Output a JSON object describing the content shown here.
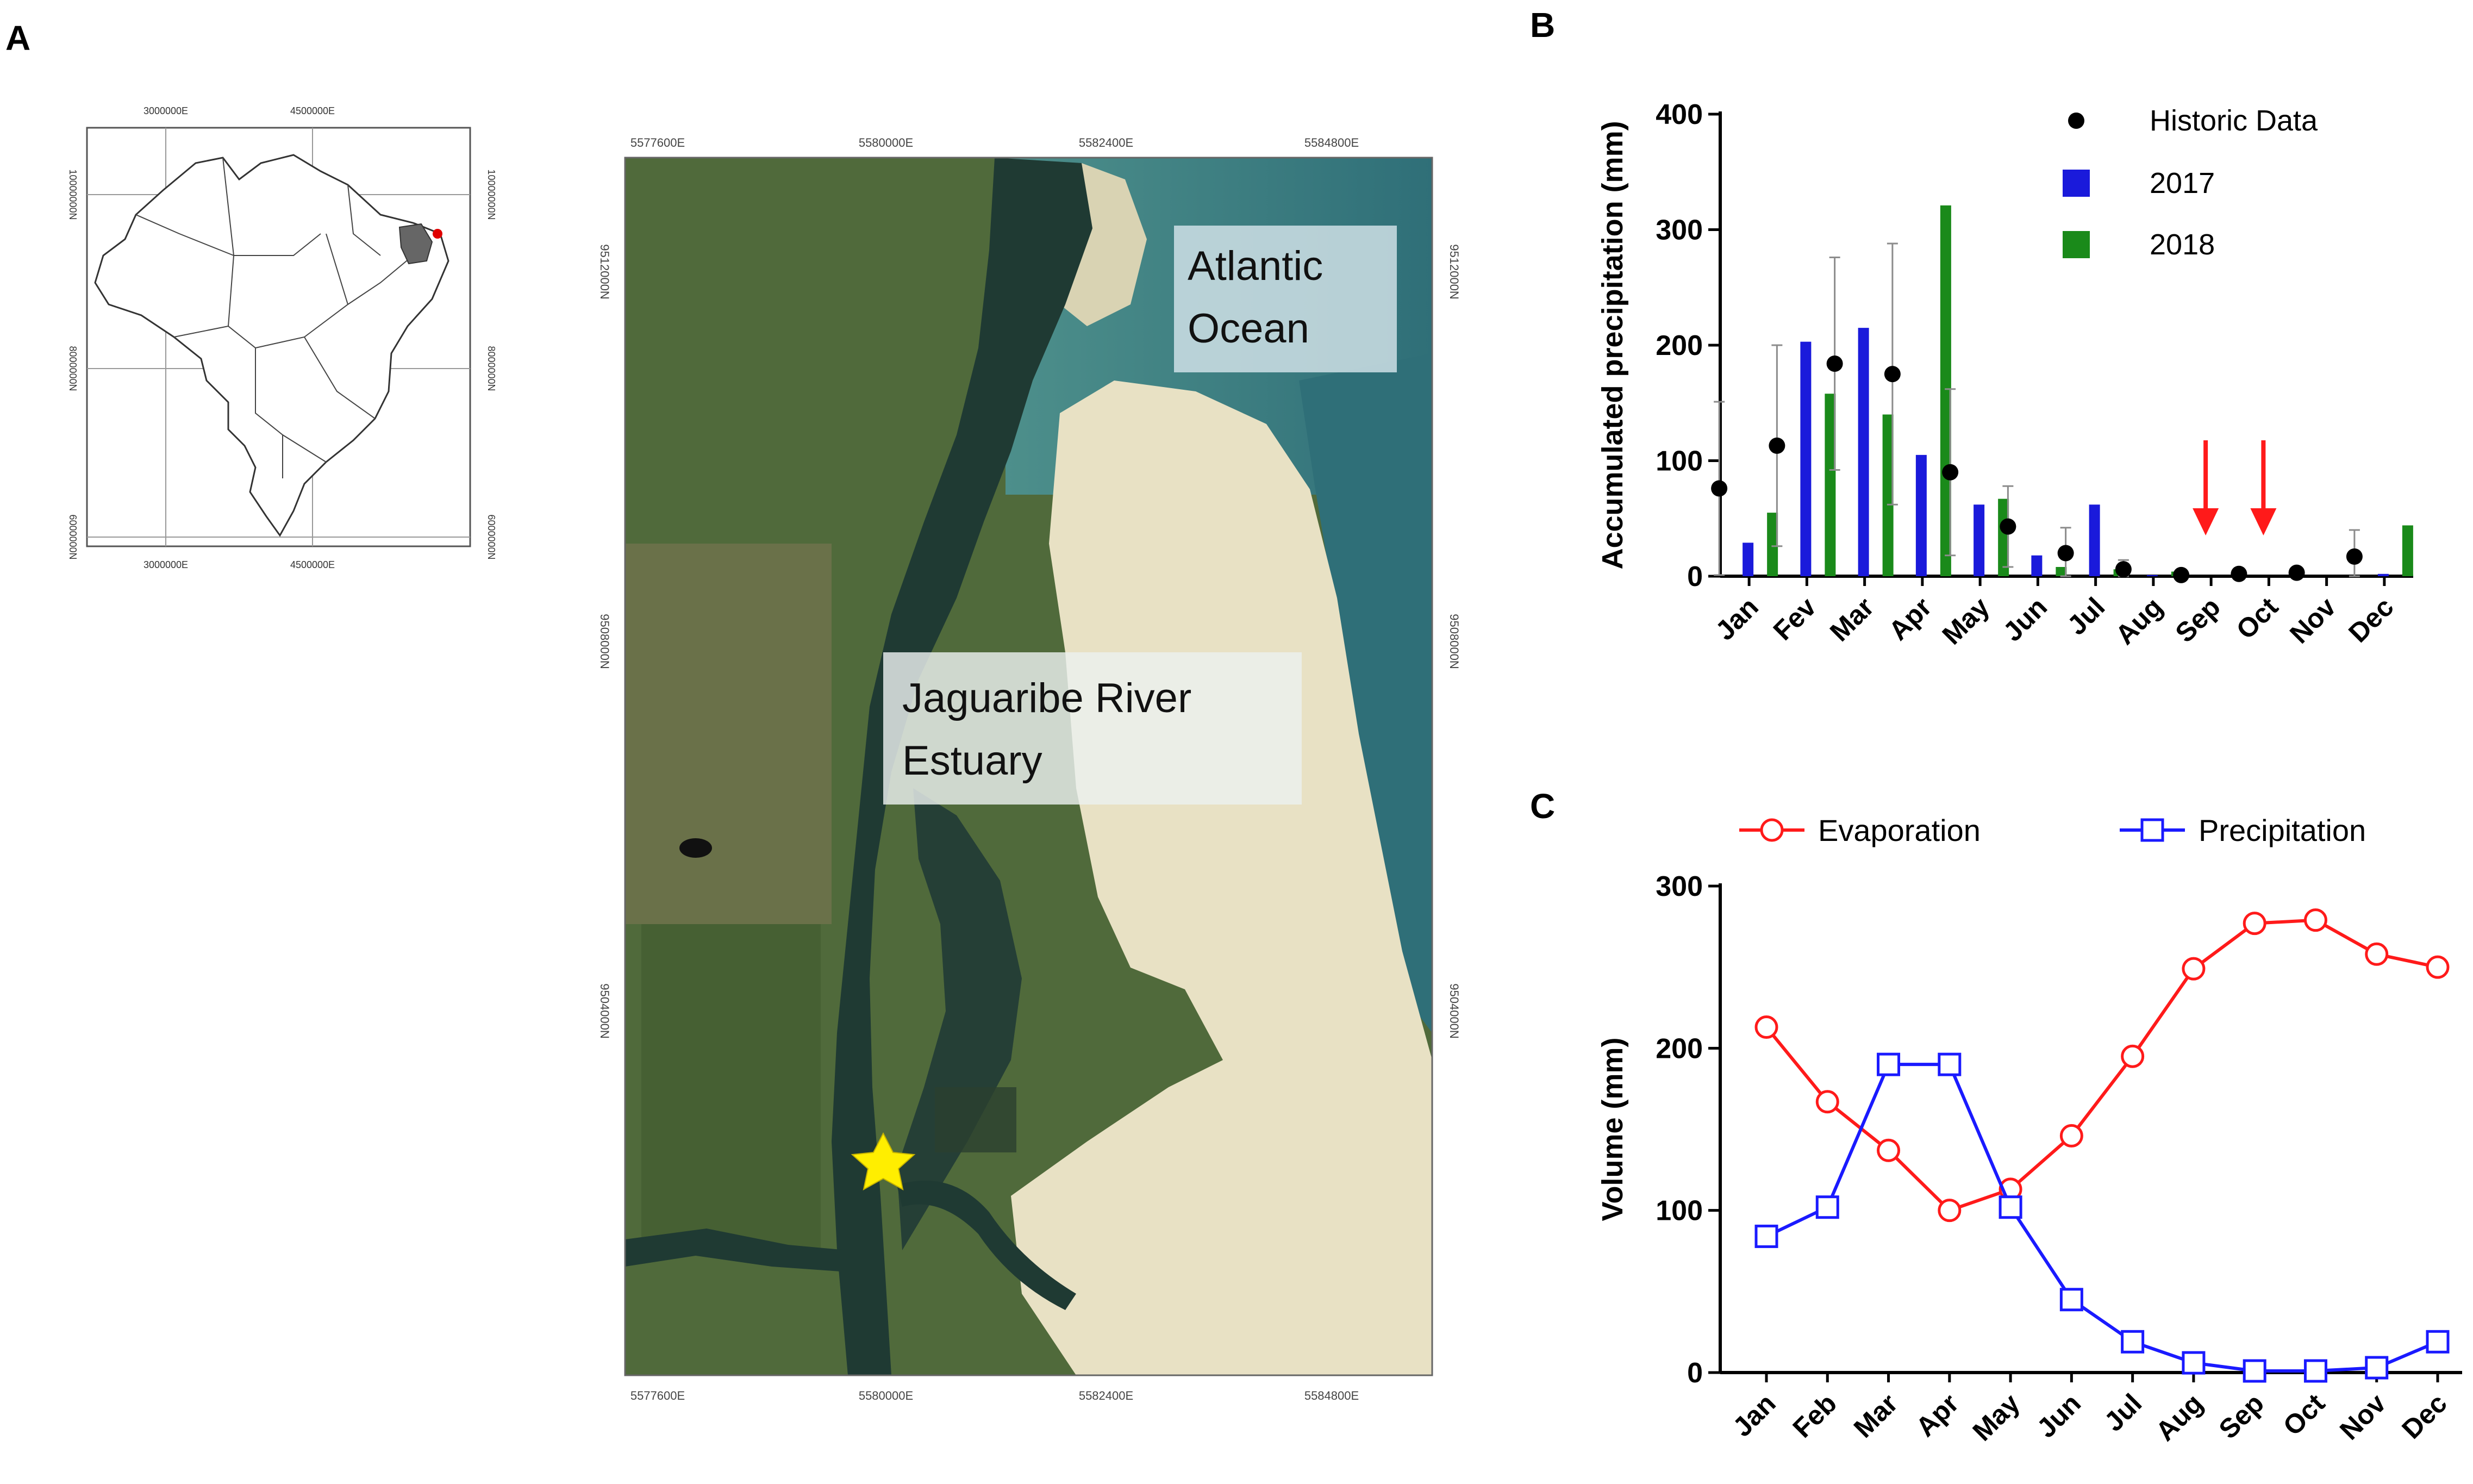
{
  "panels": {
    "a": "A",
    "b": "B",
    "c": "C"
  },
  "inset_map": {
    "top_ticks": [
      "3000000E",
      "4500000E"
    ],
    "bottom_ticks": [
      "3000000E",
      "4500000E"
    ],
    "left_ticks": [
      "10000000N",
      "8000000N",
      "6000000N"
    ],
    "right_ticks": [
      "10000000N",
      "8000000N",
      "6000000N"
    ]
  },
  "satellite_map": {
    "top_ticks": [
      "5577600E",
      "5580000E",
      "5582400E",
      "5584800E"
    ],
    "bottom_ticks": [
      "5577600E",
      "5580000E",
      "5582400E",
      "5584800E"
    ],
    "left_ticks": [
      "9512000N",
      "9508000N",
      "9504000N"
    ],
    "right_ticks": [
      "9512000N",
      "9508000N",
      "9504000N"
    ],
    "label_ocean_line1": "Atlantic",
    "label_ocean_line2": "Ocean",
    "label_estuary_line1": "Jaguaribe River",
    "label_estuary_line2": "Estuary",
    "marker": "star",
    "colors": {
      "water": "#1d3a34",
      "vegetation": "#4e6b3a",
      "sand": "#e9e3c8",
      "ocean": "#3f7f7e",
      "star": "#ffee00"
    }
  },
  "chart_data": [
    {
      "type": "bar",
      "panel": "B",
      "ylabel": "Accumulated precipitation (mm)",
      "xlabel": "",
      "ylim": [
        0,
        400
      ],
      "yticks": [
        0,
        100,
        200,
        300,
        400
      ],
      "categories": [
        "Jan",
        "Fev",
        "Mar",
        "Apr",
        "May",
        "Jun",
        "Jul",
        "Aug",
        "Sep",
        "Oct",
        "Nov",
        "Dec"
      ],
      "series": [
        {
          "name": "2017",
          "color": "#1a1adb",
          "values": [
            29,
            203,
            215,
            105,
            62,
            18,
            62,
            1,
            0,
            0,
            0,
            2
          ]
        },
        {
          "name": "2018",
          "color": "#1a8a1a",
          "values": [
            55,
            158,
            140,
            321,
            67,
            8,
            6,
            4,
            0,
            0,
            0,
            44
          ]
        }
      ],
      "historic": {
        "name": "Historic Data",
        "color": "#000000",
        "mean": [
          76,
          113,
          184,
          175,
          90,
          43,
          20,
          6,
          1,
          2,
          3,
          17
        ],
        "sd": [
          75,
          87,
          92,
          113,
          72,
          35,
          22,
          8,
          2,
          3,
          4,
          23
        ]
      },
      "arrows_at": [
        "Sep",
        "Oct"
      ],
      "arrow_color": "#ff1a1a",
      "legend_position": "top-right"
    },
    {
      "type": "line",
      "panel": "C",
      "ylabel": "Volume (mm)",
      "xlabel": "",
      "ylim": [
        0,
        300
      ],
      "yticks": [
        0,
        100,
        200,
        300
      ],
      "categories": [
        "Jan",
        "Feb",
        "Mar",
        "Apr",
        "May",
        "Jun",
        "Jul",
        "Aug",
        "Sep",
        "Oct",
        "Nov",
        "Dec"
      ],
      "series": [
        {
          "name": "Evaporation",
          "color": "#ff1a1a",
          "marker": "circle",
          "values": [
            213,
            167,
            137,
            100,
            113,
            146,
            195,
            249,
            277,
            279,
            258,
            250
          ]
        },
        {
          "name": "Precipitation",
          "color": "#1a1aff",
          "marker": "square",
          "values": [
            84,
            102,
            190,
            190,
            102,
            45,
            19,
            6,
            1,
            1,
            3,
            19
          ]
        }
      ],
      "legend_position": "top"
    }
  ]
}
